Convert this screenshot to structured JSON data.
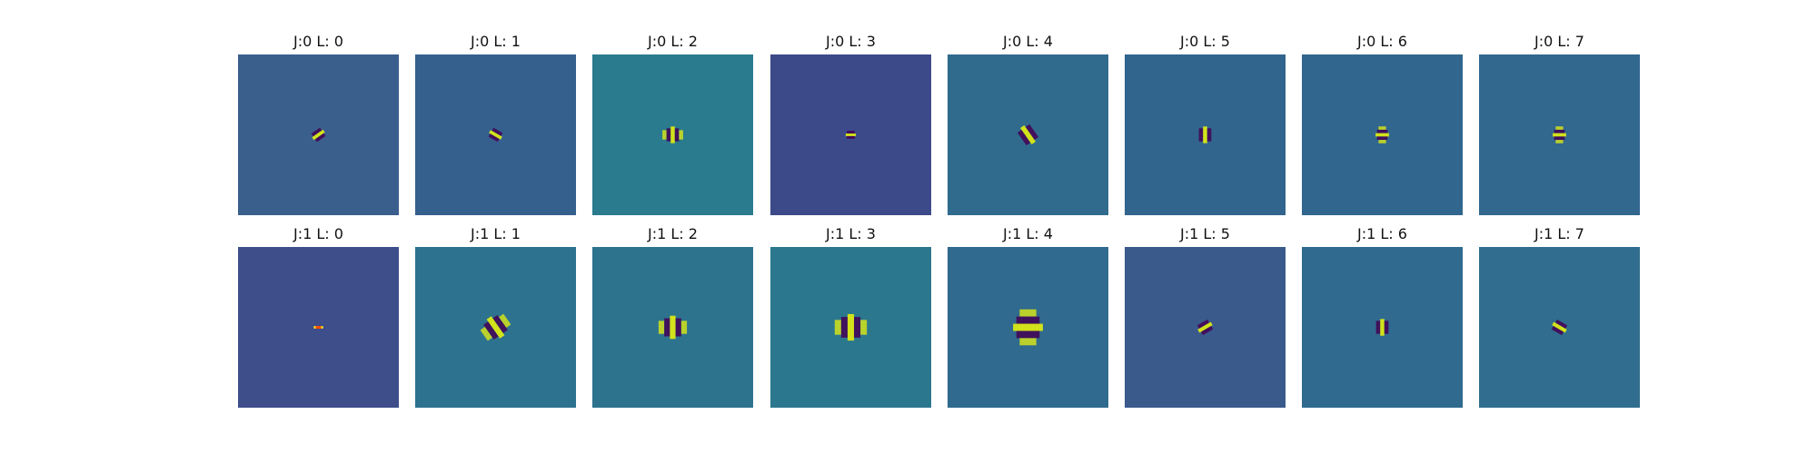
{
  "chart_data": {
    "type": "heatmap",
    "description_free": true,
    "colormap": "viridis",
    "panels": [
      {
        "title": "J:0 L: 0",
        "background": "#3b5f8d",
        "pattern": {
          "orientation_deg": 55,
          "scale": 0.6,
          "stripes": 3,
          "contrast": 1.0
        }
      },
      {
        "title": "J:0 L: 1",
        "background": "#35608d",
        "pattern": {
          "orientation_deg": 120,
          "scale": 0.6,
          "stripes": 3,
          "contrast": 1.0
        }
      },
      {
        "title": "J:0 L: 2",
        "background": "#2a7b8e",
        "pattern": {
          "orientation_deg": 0,
          "scale": 0.8,
          "stripes": 5,
          "contrast": 1.0
        }
      },
      {
        "title": "J:0 L: 3",
        "background": "#3d4a89",
        "pattern": {
          "orientation_deg": 90,
          "scale": 0.4,
          "stripes": 3,
          "contrast": 1.0
        }
      },
      {
        "title": "J:0 L: 4",
        "background": "#306b8e",
        "pattern": {
          "orientation_deg": 145,
          "scale": 1.0,
          "stripes": 3,
          "contrast": 1.0
        }
      },
      {
        "title": "J:0 L: 5",
        "background": "#31658e",
        "pattern": {
          "orientation_deg": 0,
          "scale": 0.8,
          "stripes": 3,
          "contrast": 1.0
        }
      },
      {
        "title": "J:0 L: 6",
        "background": "#31668e",
        "pattern": {
          "orientation_deg": 90,
          "scale": 0.6,
          "stripes": 5,
          "contrast": 1.0
        }
      },
      {
        "title": "J:0 L: 7",
        "background": "#32678e",
        "pattern": {
          "orientation_deg": 90,
          "scale": 0.6,
          "stripes": 5,
          "contrast": 1.0
        }
      },
      {
        "title": "J:1 L: 0",
        "background": "#3d4e8a",
        "pattern": {
          "orientation_deg": 90,
          "scale": 0.35,
          "stripes": 1,
          "contrast": 1.0,
          "hot": true
        }
      },
      {
        "title": "J:1 L: 1",
        "background": "#2d728e",
        "pattern": {
          "orientation_deg": 145,
          "scale": 1.2,
          "stripes": 5,
          "contrast": 1.0
        }
      },
      {
        "title": "J:1 L: 2",
        "background": "#2e738e",
        "pattern": {
          "orientation_deg": 0,
          "scale": 1.2,
          "stripes": 5,
          "contrast": 1.0
        }
      },
      {
        "title": "J:1 L: 3",
        "background": "#2b778e",
        "pattern": {
          "orientation_deg": 0,
          "scale": 1.4,
          "stripes": 5,
          "contrast": 1.0
        }
      },
      {
        "title": "J:1 L: 4",
        "background": "#306a8e",
        "pattern": {
          "orientation_deg": 90,
          "scale": 1.6,
          "stripes": 5,
          "contrast": 1.0
        }
      },
      {
        "title": "J:1 L: 5",
        "background": "#3a5a8c",
        "pattern": {
          "orientation_deg": 60,
          "scale": 0.7,
          "stripes": 3,
          "contrast": 1.0
        }
      },
      {
        "title": "J:1 L: 6",
        "background": "#306a8e",
        "pattern": {
          "orientation_deg": 0,
          "scale": 0.8,
          "stripes": 3,
          "contrast": 1.0
        }
      },
      {
        "title": "J:1 L: 7",
        "background": "#306d8e",
        "pattern": {
          "orientation_deg": 120,
          "scale": 0.7,
          "stripes": 3,
          "contrast": 1.0
        }
      }
    ],
    "xticks": [],
    "yticks": [],
    "grid": false,
    "legend": false
  }
}
